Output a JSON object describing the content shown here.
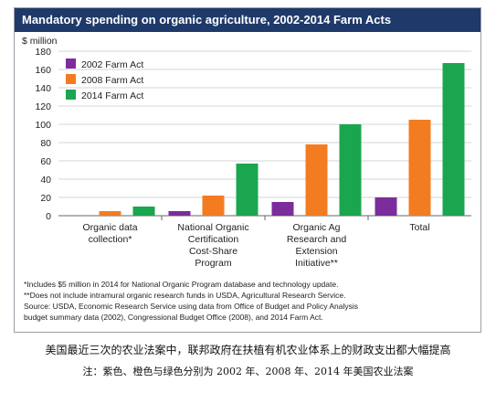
{
  "figure": {
    "title": "Mandatory spending on organic agriculture, 2002-2014 Farm Acts",
    "notes": [
      "*Includes $5 million in 2014 for National Organic Program database and technology update.",
      "**Does not include intramural organic research funds in USDA, Agricultural Research Service.",
      "Source: USDA, Economic Research Service using data from Office of Budget and Policy Analysis",
      "budget summary data (2002), Congressional Budget Office (2008), and 2014 Farm Act."
    ]
  },
  "caption": "美国最近三次的农业法案中，联邦政府在扶植有机农业体系上的财政支出都大幅提高",
  "caption_note": "注：紫色、橙色与绿色分别为 2002 年、2008 年、2014 年美国农业法案",
  "chart_data": {
    "type": "bar",
    "title": "Mandatory spending on organic agriculture, 2002-2014 Farm Acts",
    "ylabel": "$ million",
    "xlabel": "",
    "ylim": [
      0,
      180
    ],
    "yticks": [
      0,
      20,
      40,
      60,
      80,
      100,
      120,
      140,
      160,
      180
    ],
    "grid": true,
    "legend_position": "top-left",
    "categories": [
      [
        "Organic data",
        "collection*"
      ],
      [
        "National Organic",
        "Certification",
        "Cost-Share",
        "Program"
      ],
      [
        "Organic Ag",
        "Research and",
        "Extension",
        "Initiative**"
      ],
      [
        "Total"
      ]
    ],
    "series": [
      {
        "name": "2002 Farm Act",
        "color": "#7b2d9b",
        "values": [
          0,
          5,
          15,
          20
        ]
      },
      {
        "name": "2008 Farm Act",
        "color": "#f47c20",
        "values": [
          5,
          22,
          78,
          105
        ]
      },
      {
        "name": "2014 Farm Act",
        "color": "#1aa64f",
        "values": [
          10,
          57,
          100,
          167
        ]
      }
    ]
  }
}
